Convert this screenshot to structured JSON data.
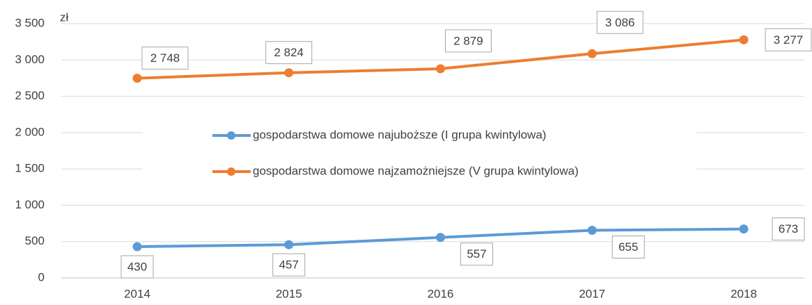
{
  "chart_data": {
    "type": "line",
    "y_axis_label": "zł",
    "categories": [
      "2014",
      "2015",
      "2016",
      "2017",
      "2018"
    ],
    "series": [
      {
        "name": "gospodarstwa domowe najuboższe (I grupa kwintylowa)",
        "color": "#5b9bd5",
        "values": [
          430,
          457,
          557,
          655,
          673
        ],
        "value_labels": [
          "430",
          "457",
          "557",
          "655",
          "673"
        ]
      },
      {
        "name": "gospodarstwa domowe najzamożniejsze (V grupa kwintylowa)",
        "color": "#ed7d31",
        "values": [
          2748,
          2824,
          2879,
          3086,
          3277
        ],
        "value_labels": [
          "2 748",
          "2 824",
          "2 879",
          "3 086",
          "3 277"
        ]
      }
    ],
    "ylim": [
      0,
      3500
    ],
    "yticks": [
      0,
      500,
      {
        "value": 1000,
        "label": "1 000"
      },
      {
        "value": 1500,
        "label": "1 500"
      },
      {
        "value": 2000,
        "label": "2 000"
      },
      {
        "value": 2500,
        "label": "2 500"
      },
      {
        "value": 3000,
        "label": "3 000"
      },
      {
        "value": 3500,
        "label": "3 500"
      }
    ],
    "grid": true,
    "legend_position": "center"
  }
}
